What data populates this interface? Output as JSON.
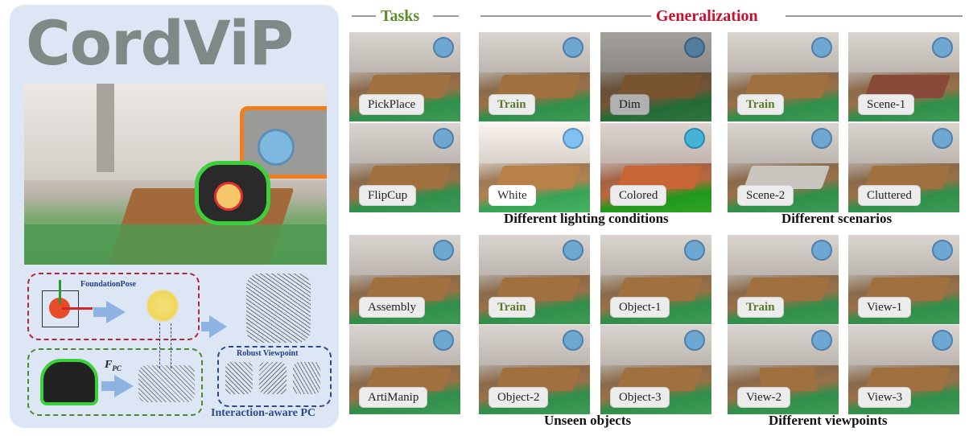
{
  "left_panel": {
    "logo": "CordViP",
    "foundation_label": "FoundationPose",
    "fpc_main": "F",
    "fpc_sub": "PC",
    "robust_label": "Robust Viewpoint",
    "interaction_label": "Interaction-aware PC"
  },
  "headers": {
    "tasks": "Tasks",
    "generalization": "Generalization"
  },
  "colors": {
    "tasks_header": "#5b8c2a",
    "generalization_header": "#c8102e",
    "train_label": "#5a7a2a",
    "orange_outline": "#f07c1c",
    "green_outline": "#3cd13c",
    "red_dash": "#b3263a",
    "green_dash": "#4a8a2a",
    "blue_dash": "#2a4a8a"
  },
  "tiles": {
    "pickplace": "PickPlace",
    "flipcup": "FlipCup",
    "assembly": "Assembly",
    "artimanip": "ArtiManip",
    "light_train": "Train",
    "dim": "Dim",
    "white": "White",
    "colored": "Colored",
    "scene_train": "Train",
    "scene1": "Scene-1",
    "scene2": "Scene-2",
    "cluttered": "Cluttered",
    "obj_train": "Train",
    "object1": "Object-1",
    "object2": "Object-2",
    "object3": "Object-3",
    "view_train": "Train",
    "view1": "View-1",
    "view2": "View-2",
    "view3": "View-3"
  },
  "captions": {
    "lighting": "Different lighting conditions",
    "scenarios": "Different scenarios",
    "objects": "Unseen objects",
    "viewpoints": "Different viewpoints"
  }
}
